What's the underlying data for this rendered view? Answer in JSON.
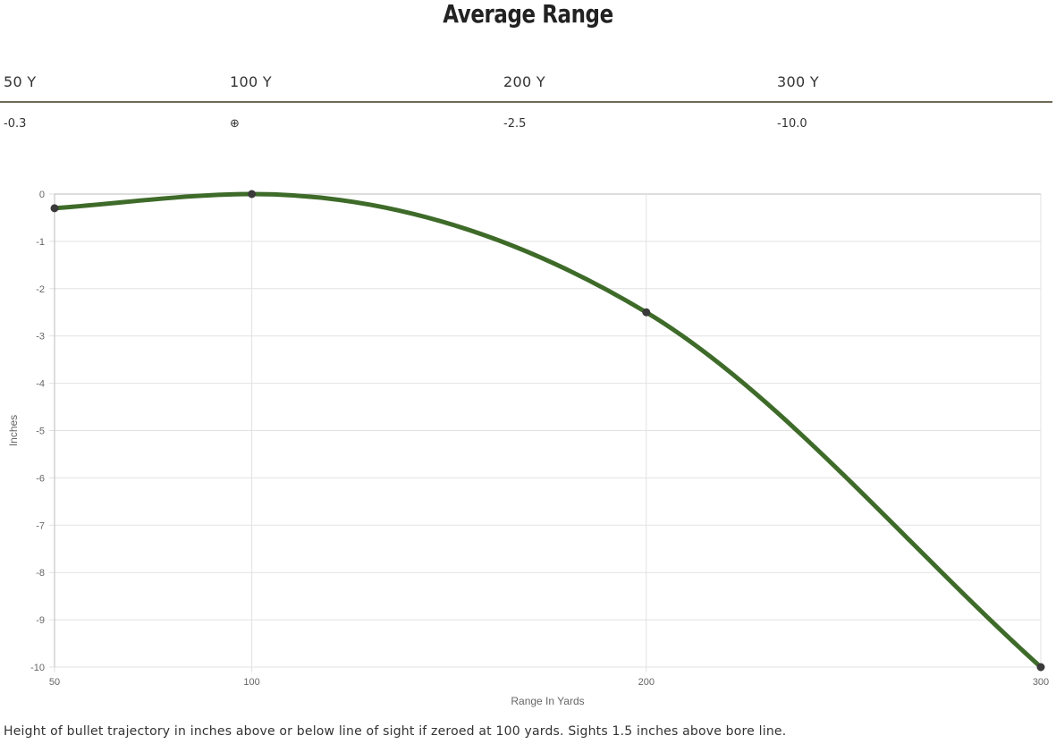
{
  "page": {
    "title": "Average Range",
    "footnote": "Height of bullet trajectory in inches above or below line of sight if zeroed at 100 yards. Sights 1.5 inches above bore line."
  },
  "range_table": {
    "headers": [
      "50 Y",
      "100 Y",
      "200 Y",
      "300 Y"
    ],
    "values": [
      "-0.3",
      "⊕",
      "-2.5",
      "-10.0"
    ]
  },
  "colors": {
    "line": "#3e6b29",
    "point": "#3a3a3a",
    "grid": "#e2e2e2",
    "axis": "#bbbbbb",
    "rule": "#6f6a55"
  },
  "chart_data": {
    "type": "line",
    "title": "",
    "xlabel": "Range In Yards",
    "ylabel": "Inches",
    "x": [
      50,
      100,
      200,
      300
    ],
    "series": [
      {
        "values": [
          -0.3,
          0,
          -2.5,
          -10.0
        ]
      }
    ],
    "xlim": [
      50,
      300
    ],
    "ylim": [
      -10,
      0
    ],
    "x_ticks": [
      50,
      100,
      200,
      300
    ],
    "y_ticks": [
      0,
      -1,
      -2,
      -3,
      -4,
      -5,
      -6,
      -7,
      -8,
      -9,
      -10
    ],
    "grid": true,
    "legend": "none"
  }
}
